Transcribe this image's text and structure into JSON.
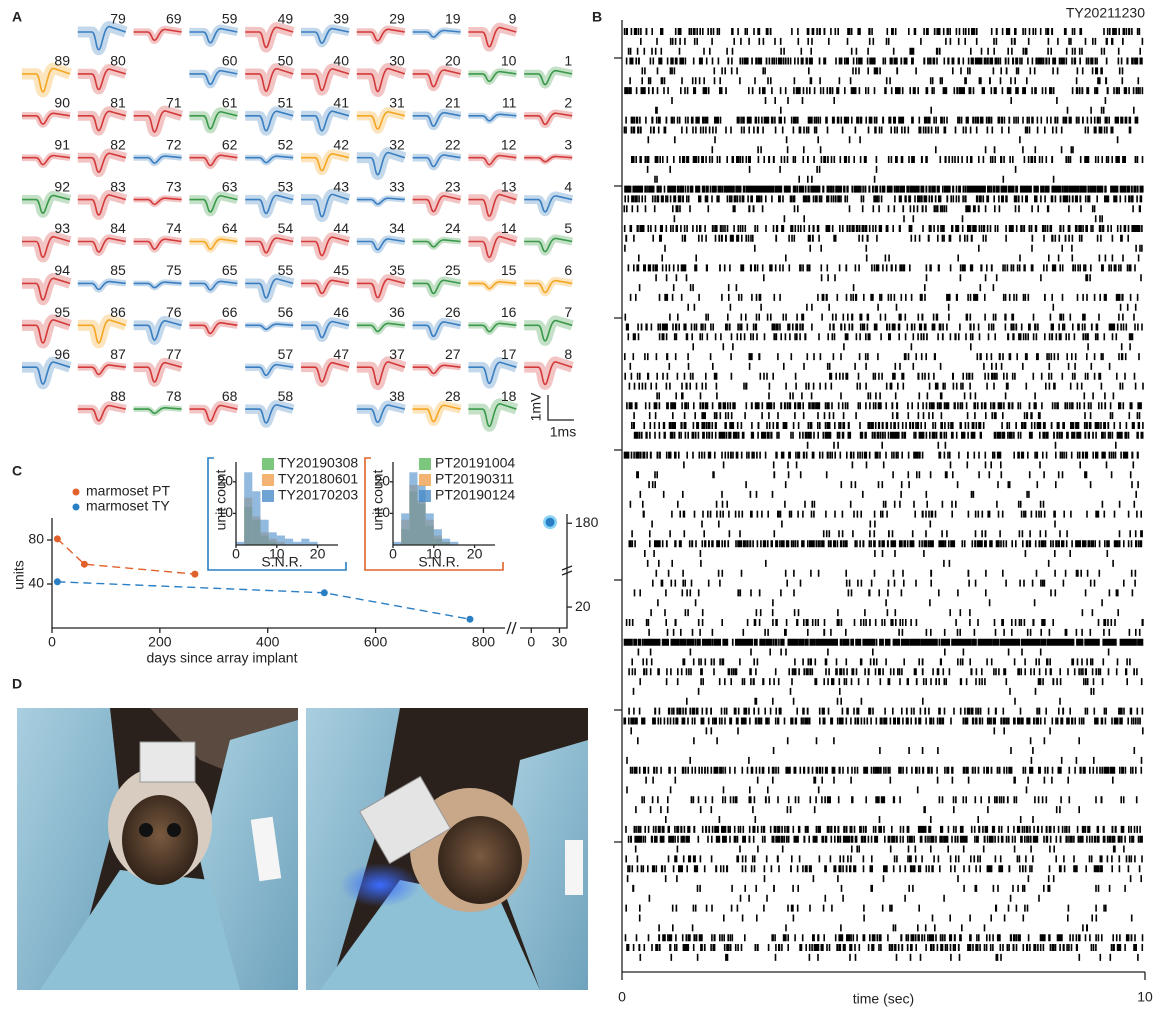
{
  "panel_labels": [
    "A",
    "B",
    "C",
    "D"
  ],
  "panel_a": {
    "rows": [
      [
        null,
        {
          "label": "79",
          "color": "#3a7fc1"
        },
        {
          "label": "69",
          "color": "#d43a3a"
        },
        {
          "label": "59",
          "color": "#3a7fc1"
        },
        {
          "label": "49",
          "color": "#d43a3a"
        },
        {
          "label": "39",
          "color": "#3a7fc1"
        },
        {
          "label": "29",
          "color": "#d43a3a"
        },
        {
          "label": "19",
          "color": "#3a7fc1"
        },
        {
          "label": "9",
          "color": "#d43a3a"
        },
        null
      ],
      [
        {
          "label": "89",
          "color": "#f5a623"
        },
        {
          "label": "80",
          "color": "#d43a3a"
        },
        null,
        {
          "label": "60",
          "color": "#3a7fc1"
        },
        {
          "label": "50",
          "color": "#d43a3a"
        },
        {
          "label": "40",
          "color": "#d43a3a"
        },
        {
          "label": "30",
          "color": "#d43a3a"
        },
        {
          "label": "20",
          "color": "#d43a3a"
        },
        {
          "label": "10",
          "color": "#3a9a4a"
        },
        {
          "label": "1",
          "color": "#3a9a4a"
        }
      ],
      [
        {
          "label": "90",
          "color": "#d43a3a"
        },
        {
          "label": "81",
          "color": "#d43a3a"
        },
        {
          "label": "71",
          "color": "#d43a3a"
        },
        {
          "label": "61",
          "color": "#3a9a4a"
        },
        {
          "label": "51",
          "color": "#3a7fc1"
        },
        {
          "label": "41",
          "color": "#3a7fc1"
        },
        {
          "label": "31",
          "color": "#f5a623"
        },
        {
          "label": "21",
          "color": "#3a7fc1"
        },
        {
          "label": "11",
          "color": "#3a7fc1"
        },
        {
          "label": "2",
          "color": "#d43a3a"
        }
      ],
      [
        {
          "label": "91",
          "color": "#d43a3a"
        },
        {
          "label": "82",
          "color": "#d43a3a"
        },
        {
          "label": "72",
          "color": "#3a7fc1"
        },
        {
          "label": "62",
          "color": "#d43a3a"
        },
        {
          "label": "52",
          "color": "#3a7fc1"
        },
        {
          "label": "42",
          "color": "#f5a623"
        },
        {
          "label": "32",
          "color": "#3a7fc1"
        },
        {
          "label": "22",
          "color": "#3a7fc1"
        },
        {
          "label": "12",
          "color": "#d43a3a"
        },
        {
          "label": "3",
          "color": "#d43a3a"
        }
      ],
      [
        {
          "label": "92",
          "color": "#3a9a4a"
        },
        {
          "label": "83",
          "color": "#d43a3a"
        },
        {
          "label": "73",
          "color": "#d43a3a"
        },
        {
          "label": "63",
          "color": "#3a9a4a"
        },
        {
          "label": "53",
          "color": "#3a7fc1"
        },
        {
          "label": "43",
          "color": "#3a7fc1"
        },
        {
          "label": "33",
          "color": "#3a7fc1"
        },
        {
          "label": "23",
          "color": "#d43a3a"
        },
        {
          "label": "13",
          "color": "#d43a3a"
        },
        {
          "label": "4",
          "color": "#3a7fc1"
        }
      ],
      [
        {
          "label": "93",
          "color": "#d43a3a"
        },
        {
          "label": "84",
          "color": "#d43a3a"
        },
        {
          "label": "74",
          "color": "#d43a3a"
        },
        {
          "label": "64",
          "color": "#f5a623"
        },
        {
          "label": "54",
          "color": "#d43a3a"
        },
        {
          "label": "44",
          "color": "#d43a3a"
        },
        {
          "label": "34",
          "color": "#3a7fc1"
        },
        {
          "label": "24",
          "color": "#3a9a4a"
        },
        {
          "label": "14",
          "color": "#d43a3a"
        },
        {
          "label": "5",
          "color": "#3a9a4a"
        }
      ],
      [
        {
          "label": "94",
          "color": "#d43a3a"
        },
        {
          "label": "85",
          "color": "#3a7fc1"
        },
        {
          "label": "75",
          "color": "#3a7fc1"
        },
        {
          "label": "65",
          "color": "#3a7fc1"
        },
        {
          "label": "55",
          "color": "#3a7fc1"
        },
        {
          "label": "45",
          "color": "#d43a3a"
        },
        {
          "label": "35",
          "color": "#d43a3a"
        },
        {
          "label": "25",
          "color": "#3a9a4a"
        },
        {
          "label": "15",
          "color": "#f5a623"
        },
        {
          "label": "6",
          "color": "#f5a623"
        }
      ],
      [
        {
          "label": "95",
          "color": "#d43a3a"
        },
        {
          "label": "86",
          "color": "#f5a623"
        },
        {
          "label": "76",
          "color": "#3a7fc1"
        },
        {
          "label": "66",
          "color": "#d43a3a"
        },
        {
          "label": "56",
          "color": "#3a7fc1"
        },
        {
          "label": "46",
          "color": "#3a7fc1"
        },
        {
          "label": "36",
          "color": "#3a9a4a"
        },
        {
          "label": "26",
          "color": "#3a7fc1"
        },
        {
          "label": "16",
          "color": "#3a9a4a"
        },
        {
          "label": "7",
          "color": "#3a9a4a"
        }
      ],
      [
        {
          "label": "96",
          "color": "#3a7fc1"
        },
        {
          "label": "87",
          "color": "#d43a3a"
        },
        {
          "label": "77",
          "color": "#d43a3a"
        },
        null,
        {
          "label": "57",
          "color": "#3a7fc1"
        },
        {
          "label": "47",
          "color": "#d43a3a"
        },
        {
          "label": "37",
          "color": "#d43a3a"
        },
        {
          "label": "27",
          "color": "#d43a3a"
        },
        {
          "label": "17",
          "color": "#3a7fc1"
        },
        {
          "label": "8",
          "color": "#d43a3a"
        }
      ],
      [
        null,
        {
          "label": "88",
          "color": "#d43a3a"
        },
        {
          "label": "78",
          "color": "#3a9a4a"
        },
        {
          "label": "68",
          "color": "#d43a3a"
        },
        {
          "label": "58",
          "color": "#3a7fc1"
        },
        null,
        {
          "label": "38",
          "color": "#3a7fc1"
        },
        {
          "label": "28",
          "color": "#f5a623"
        },
        {
          "label": "18",
          "color": "#3a9a4a"
        },
        null
      ]
    ],
    "scale_bar": {
      "y_label": "1mV",
      "x_label": "1ms"
    }
  },
  "chart_data": [
    {
      "type": "raster",
      "title": "TY20211230",
      "xlabel": "time (sec)",
      "xlim": [
        0,
        10
      ],
      "xticks": [
        0,
        10
      ]
    },
    {
      "type": "line",
      "ylabel": "units",
      "xlabel": "days since array implant",
      "xlim": [
        0,
        840
      ],
      "xticks": [
        0,
        200,
        400,
        600,
        800
      ],
      "ylim": [
        0,
        100
      ],
      "yticks": [
        40,
        80
      ],
      "x2lim": [
        -12,
        38
      ],
      "x2ticks": [
        0,
        30
      ],
      "y2lim": [
        -20,
        190
      ],
      "y2ticks": [
        20,
        180
      ],
      "legend": "upper left",
      "series": [
        {
          "name": "marmoset PT",
          "color": "#e0622a",
          "x": [
            10,
            60,
            265
          ],
          "values": [
            81,
            58,
            49
          ]
        },
        {
          "name": "marmoset TY",
          "color": "#2a7fc4",
          "x": [
            10,
            505,
            775
          ],
          "values": [
            42,
            32,
            8
          ]
        },
        {
          "color": "#2a7fc4",
          "axis": "y2",
          "x": [
            20
          ],
          "values": [
            182
          ]
        }
      ]
    },
    {
      "type": "histogram",
      "ylabel": "unit count",
      "xlabel": "S.N.R.",
      "frame_color": "#2a7fc4",
      "bins": [
        0,
        2,
        4,
        6,
        8,
        10,
        12,
        14,
        16,
        18,
        20,
        22,
        24
      ],
      "xlim": [
        0,
        25
      ],
      "xticks": [
        0,
        10,
        20
      ],
      "ylim": [
        0,
        25
      ],
      "yticks": [
        10,
        20
      ],
      "series": [
        {
          "name": "TY20190308",
          "color": "#5cb85c",
          "values": [
            0,
            12,
            8,
            3,
            1,
            0,
            0,
            0,
            0,
            0,
            0,
            0
          ]
        },
        {
          "name": "TY20180601",
          "color": "#f0a050",
          "values": [
            0,
            15,
            9,
            4,
            2,
            1,
            0,
            0,
            0,
            0,
            0,
            0
          ]
        },
        {
          "name": "TY20170203",
          "color": "#4a8cc8",
          "values": [
            1,
            23,
            17,
            8,
            4,
            3,
            2,
            1,
            2,
            1,
            0,
            0
          ]
        }
      ]
    },
    {
      "type": "histogram",
      "ylabel": "unit count",
      "xlabel": "S.N.R.",
      "frame_color": "#e0622a",
      "bins": [
        0,
        2,
        4,
        6,
        8,
        10,
        12,
        14,
        16,
        18,
        20,
        22,
        24
      ],
      "xlim": [
        0,
        25
      ],
      "xticks": [
        0,
        10,
        20
      ],
      "ylim": [
        0,
        25
      ],
      "yticks": [
        10,
        20
      ],
      "series": [
        {
          "name": "PT20191004",
          "color": "#5cb85c",
          "values": [
            0,
            5,
            17,
            13,
            6,
            2,
            1,
            0,
            0,
            0,
            0,
            0
          ]
        },
        {
          "name": "PT20190311",
          "color": "#f0a050",
          "values": [
            0,
            8,
            19,
            14,
            8,
            3,
            1,
            0,
            0,
            0,
            0,
            0
          ]
        },
        {
          "name": "PT20190124",
          "color": "#4a8cc8",
          "values": [
            1,
            10,
            23,
            19,
            10,
            5,
            2,
            1,
            0,
            0,
            0,
            0
          ]
        }
      ]
    }
  ]
}
